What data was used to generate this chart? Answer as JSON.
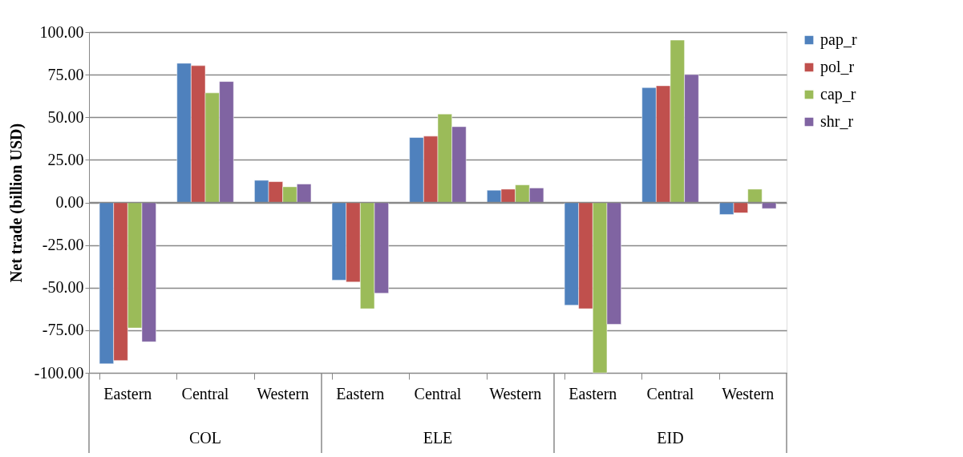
{
  "chart_data": {
    "type": "bar",
    "ylabel": "Net trade (billion USD)",
    "categories": [
      "Eastern",
      "Central",
      "Western",
      "Eastern",
      "Central",
      "Western",
      "Eastern",
      "Central",
      "Western"
    ],
    "annotations": [
      "COL",
      "ELE",
      "EID"
    ],
    "series": [
      {
        "name": "pap_r",
        "color": "#4f81bd",
        "values": [
          -94.7,
          81.7,
          13.0,
          -45.6,
          38.1,
          7.2,
          -60.3,
          67.4,
          -7.1
        ]
      },
      {
        "name": "pol_r",
        "color": "#c0504d",
        "values": [
          -92.8,
          80.3,
          12.2,
          -46.7,
          38.9,
          7.8,
          -62.4,
          68.5,
          -6.1
        ]
      },
      {
        "name": "cap_r",
        "color": "#9bbb59",
        "values": [
          -73.7,
          64.3,
          9.2,
          -62.4,
          51.9,
          10.3,
          -100.0,
          95.3,
          7.8
        ]
      },
      {
        "name": "shr_r",
        "color": "#8064a2",
        "values": [
          -81.8,
          71.0,
          10.8,
          -53.3,
          44.5,
          8.5,
          -71.5,
          75.1,
          -3.6
        ]
      }
    ],
    "ylim": [
      -100,
      100
    ],
    "yticks": [
      {
        "value": -100,
        "label": "-100.00"
      },
      {
        "value": -75,
        "label": "-75.00"
      },
      {
        "value": -50,
        "label": "-50.00"
      },
      {
        "value": -25,
        "label": "-25.00"
      },
      {
        "value": 0,
        "label": "0.00"
      },
      {
        "value": 25,
        "label": "25.00"
      },
      {
        "value": 50,
        "label": "50.00"
      },
      {
        "value": 75,
        "label": "75.00"
      },
      {
        "value": 100,
        "label": "100.00"
      }
    ],
    "grid": "y",
    "legend": "right"
  }
}
